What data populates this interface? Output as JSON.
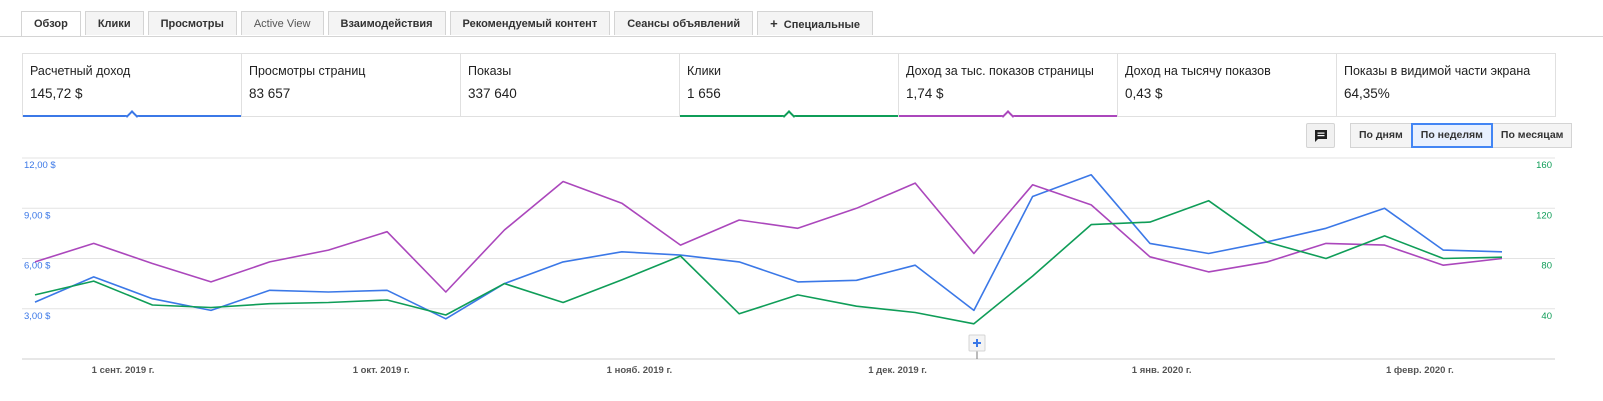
{
  "tabs": [
    {
      "label": "Обзор",
      "active": true
    },
    {
      "label": "Клики"
    },
    {
      "label": "Просмотры"
    },
    {
      "label": "Active View",
      "normal": true
    },
    {
      "label": "Взаимодействия"
    },
    {
      "label": "Рекомендуемый контент"
    },
    {
      "label": "Сеансы объявлений"
    },
    {
      "label": "Специальные",
      "plus": true
    }
  ],
  "metrics": [
    {
      "label": "Расчетный доход",
      "value": "145,72 $",
      "color": "#3b78e7"
    },
    {
      "label": "Просмотры страниц",
      "value": "83 657"
    },
    {
      "label": "Показы",
      "value": "337 640"
    },
    {
      "label": "Клики",
      "value": "1 656",
      "color": "#0f9d58"
    },
    {
      "label": "Доход за тыс. показов страницы",
      "value": "1,74 $",
      "color": "#ab47bc"
    },
    {
      "label": "Доход на тысячу показов",
      "value": "0,43 $"
    },
    {
      "label": "Показы в видимой части экрана",
      "value": "64,35%"
    }
  ],
  "period_buttons": [
    "По дням",
    "По неделям",
    "По месяцам"
  ],
  "period_selected": 1,
  "colors": {
    "blue": "#3b78e7",
    "green": "#0f9d58",
    "purple": "#ab47bc"
  },
  "chart_data": {
    "type": "line",
    "left_axis": {
      "ticks": [
        "3,00 $",
        "6,00 $",
        "9,00 $",
        "12,00 $"
      ],
      "values": [
        3,
        6,
        9,
        12
      ],
      "range": [
        0,
        12
      ]
    },
    "right_axis": {
      "ticks": [
        "40",
        "80",
        "120",
        "160"
      ],
      "values": [
        40,
        80,
        120,
        160
      ],
      "range": [
        0,
        160
      ]
    },
    "x_labels": [
      "1 сент. 2019 г.",
      "1 окт. 2019 г.",
      "1 нояб. 2019 г.",
      "1 дек. 2019 г.",
      "1 янв. 2020 г.",
      "1 февр. 2020 г."
    ],
    "x_label_index": [
      1.5,
      5.9,
      10.3,
      14.7,
      19.2,
      23.6
    ],
    "grid": true,
    "series": [
      {
        "name": "Расчетный доход",
        "axis": "left",
        "color": "#3b78e7",
        "values": [
          3.4,
          4.9,
          3.6,
          2.9,
          4.1,
          4.0,
          4.1,
          2.4,
          4.5,
          5.8,
          6.4,
          6.2,
          5.8,
          4.6,
          4.7,
          5.6,
          2.9,
          9.7,
          11.0,
          6.9,
          6.3,
          7.0,
          7.8,
          9.0,
          6.5,
          6.4
        ]
      },
      {
        "name": "Доход за тыс. показов страницы",
        "axis": "left",
        "color": "#ab47bc",
        "values": [
          5.8,
          6.9,
          5.7,
          4.6,
          5.8,
          6.5,
          7.6,
          4.0,
          7.7,
          10.6,
          9.3,
          6.8,
          8.3,
          7.8,
          9.0,
          10.5,
          6.3,
          10.4,
          9.2,
          6.1,
          5.2,
          5.8,
          6.9,
          6.8,
          5.6,
          6.0
        ]
      },
      {
        "name": "Клики",
        "axis": "right",
        "color": "#0f9d58",
        "values": [
          51,
          62,
          43,
          41,
          44,
          45,
          47,
          35,
          60,
          45,
          63,
          82,
          36,
          51,
          42,
          37,
          28,
          66,
          107,
          109,
          126,
          93,
          80,
          98,
          80,
          81
        ]
      }
    ]
  }
}
